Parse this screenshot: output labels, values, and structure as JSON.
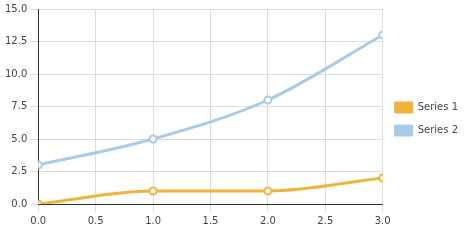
{
  "chart_data": {
    "type": "line",
    "x": [
      0,
      1,
      2,
      3
    ],
    "series": [
      {
        "name": "Series 1",
        "color": "#f0b33c",
        "values": [
          0,
          1,
          1,
          2
        ],
        "marker": "circle",
        "line_style": "solid"
      },
      {
        "name": "Series 2",
        "color": "#a9cbe6",
        "values": [
          3,
          5,
          8,
          13
        ],
        "marker": "circle",
        "line_style": "solid"
      }
    ],
    "xlim": [
      0,
      3
    ],
    "xticks": [
      {
        "value": 0,
        "label": "0.0"
      },
      0.5,
      {
        "value": 1,
        "label": "1.0"
      },
      1.5,
      {
        "value": 2,
        "label": "2.0"
      },
      2.5,
      {
        "value": 3,
        "label": "3.0"
      }
    ],
    "ylim": [
      0,
      15
    ],
    "yticks": [
      {
        "value": 0,
        "label": "0.0"
      },
      2.5,
      {
        "value": 5,
        "label": "5.0"
      },
      7.5,
      {
        "value": 10,
        "label": "10.0"
      },
      12.5,
      {
        "value": 15,
        "label": "15.0"
      }
    ],
    "grid": true,
    "legend": "right"
  }
}
